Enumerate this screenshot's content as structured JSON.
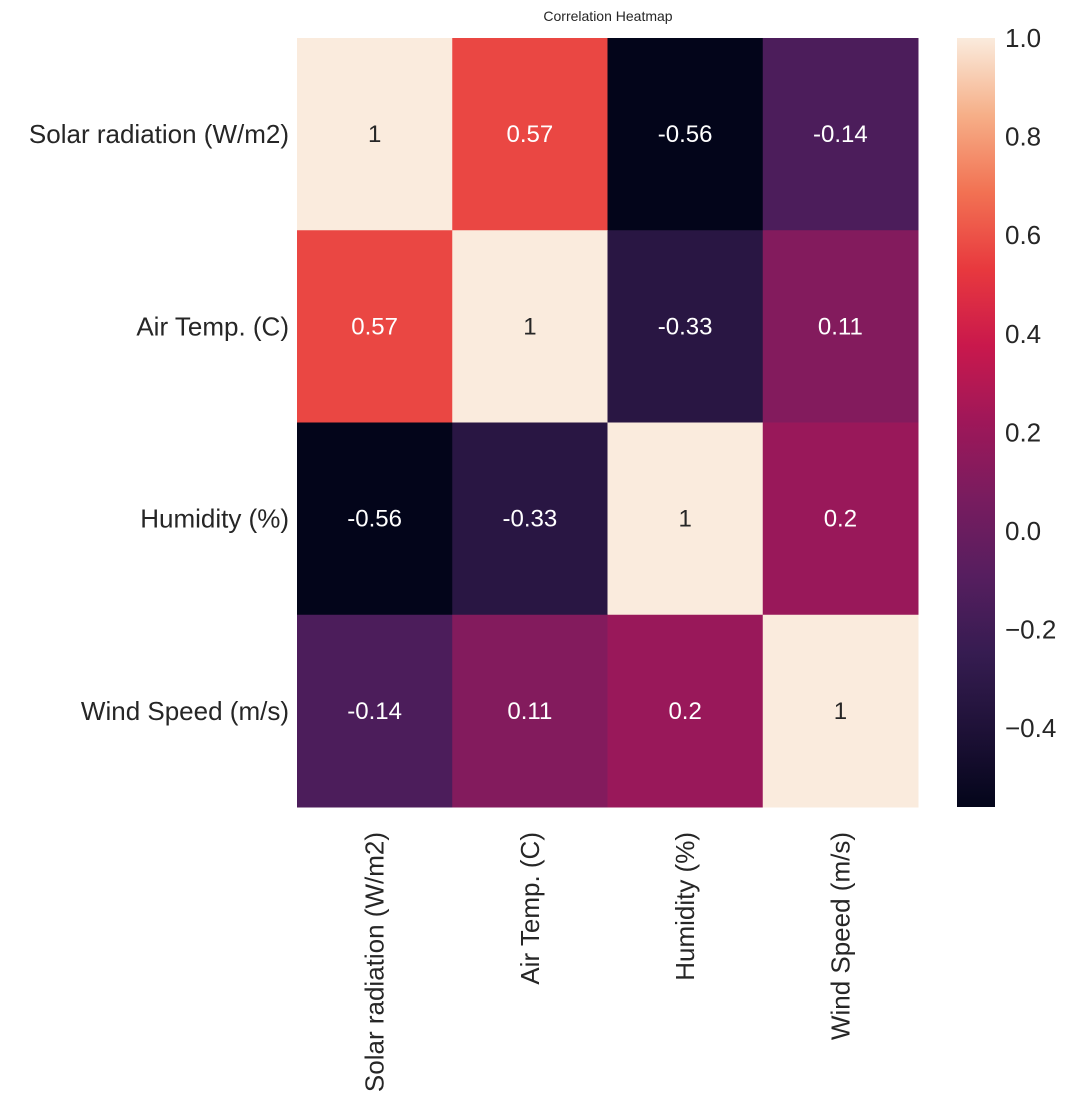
{
  "chart_data": {
    "type": "heatmap",
    "title": "Correlation Heatmap",
    "rows": [
      "Solar radiation (W/m2)",
      "Air Temp. (C)",
      "Humidity (%)",
      "Wind Speed (m/s)"
    ],
    "columns": [
      "Solar radiation (W/m2)",
      "Air Temp. (C)",
      "Humidity (%)",
      "Wind Speed (m/s)"
    ],
    "values": [
      [
        1,
        0.57,
        -0.56,
        -0.14
      ],
      [
        0.57,
        1,
        -0.33,
        0.11
      ],
      [
        -0.56,
        -0.33,
        1,
        0.2
      ],
      [
        -0.14,
        0.11,
        0.2,
        1
      ]
    ],
    "cell_labels": [
      [
        "1",
        "0.57",
        "-0.56",
        "-0.14"
      ],
      [
        "0.57",
        "1",
        "-0.33",
        "0.11"
      ],
      [
        "-0.56",
        "-0.33",
        "1",
        "0.2"
      ],
      [
        "-0.14",
        "0.11",
        "0.2",
        "1"
      ]
    ],
    "colorbar": {
      "range": [
        -0.56,
        1.0
      ],
      "ticks": [
        1.0,
        0.8,
        0.6,
        0.4,
        0.2,
        0.0,
        -0.2,
        -0.4
      ],
      "tick_labels": [
        "1.0",
        "0.8",
        "0.6",
        "0.4",
        "0.2",
        "0.0",
        "−0.2",
        "−0.4"
      ],
      "colormap": "rocket"
    },
    "grid": false
  }
}
